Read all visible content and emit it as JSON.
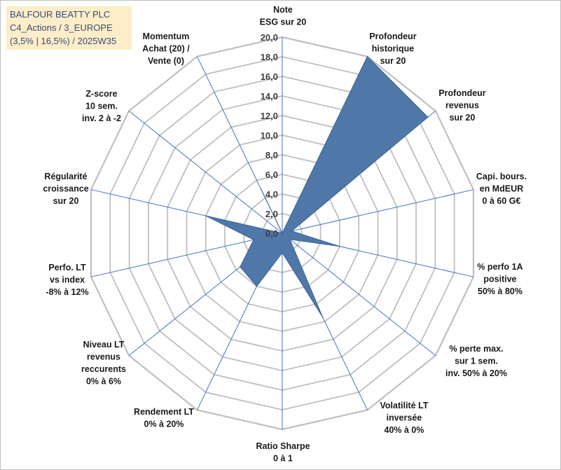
{
  "title_lines": [
    "BALFOUR BEATTY PLC",
    "C4_Actions / 3_EUROPE",
    "(3,5% | 16,5%) / 2025W35"
  ],
  "chart_data": {
    "type": "radar",
    "rmin": 0,
    "rmax": 20,
    "ticks": [
      "0,0",
      "2,0",
      "4,0",
      "6,0",
      "8,0",
      "10,0",
      "12,0",
      "14,0",
      "16,0",
      "18,0",
      "20,0"
    ],
    "axes": [
      {
        "label": [
          "Note",
          "ESG sur 20"
        ]
      },
      {
        "label": [
          "Profondeur",
          "historique",
          "sur 20"
        ]
      },
      {
        "label": [
          "Profondeur",
          "revenus",
          "sur 20"
        ]
      },
      {
        "label": [
          "Capi. bours.",
          "en MdEUR",
          "0 à 60 G€"
        ]
      },
      {
        "label": [
          "% perfo 1A",
          "positive",
          "50% à 80%"
        ]
      },
      {
        "label": [
          "% perte max.",
          "sur 1 sem.",
          "inv. 50% à 20%"
        ]
      },
      {
        "label": [
          "Volatilité LT",
          "inversée",
          "40% à 0%"
        ]
      },
      {
        "label": [
          "Ratio Sharpe",
          "0 à 1"
        ]
      },
      {
        "label": [
          "Rendement LT",
          "0% à 20%"
        ]
      },
      {
        "label": [
          "Niveau LT",
          "revenus",
          "reccurents",
          "0% à 6%"
        ]
      },
      {
        "label": [
          "Perfo. LT",
          "vs index",
          "-8% à 12%"
        ]
      },
      {
        "label": [
          "Régularité",
          "croissance",
          "sur 20"
        ]
      },
      {
        "label": [
          "Z-score",
          "10 sem.",
          "inv. 2 à -2"
        ]
      },
      {
        "label": [
          "Momentum",
          "Achat (20) /",
          "Vente (0)"
        ]
      }
    ],
    "series": [
      {
        "values": [
          0,
          20,
          19,
          1,
          6,
          1,
          9.5,
          2,
          6,
          5.5,
          3,
          8,
          0,
          5
        ],
        "color": "#4f77a8"
      }
    ],
    "colors": {
      "grid": "#bfbfbf",
      "axis": "#4472c4",
      "fill": "#4f77a8"
    }
  }
}
